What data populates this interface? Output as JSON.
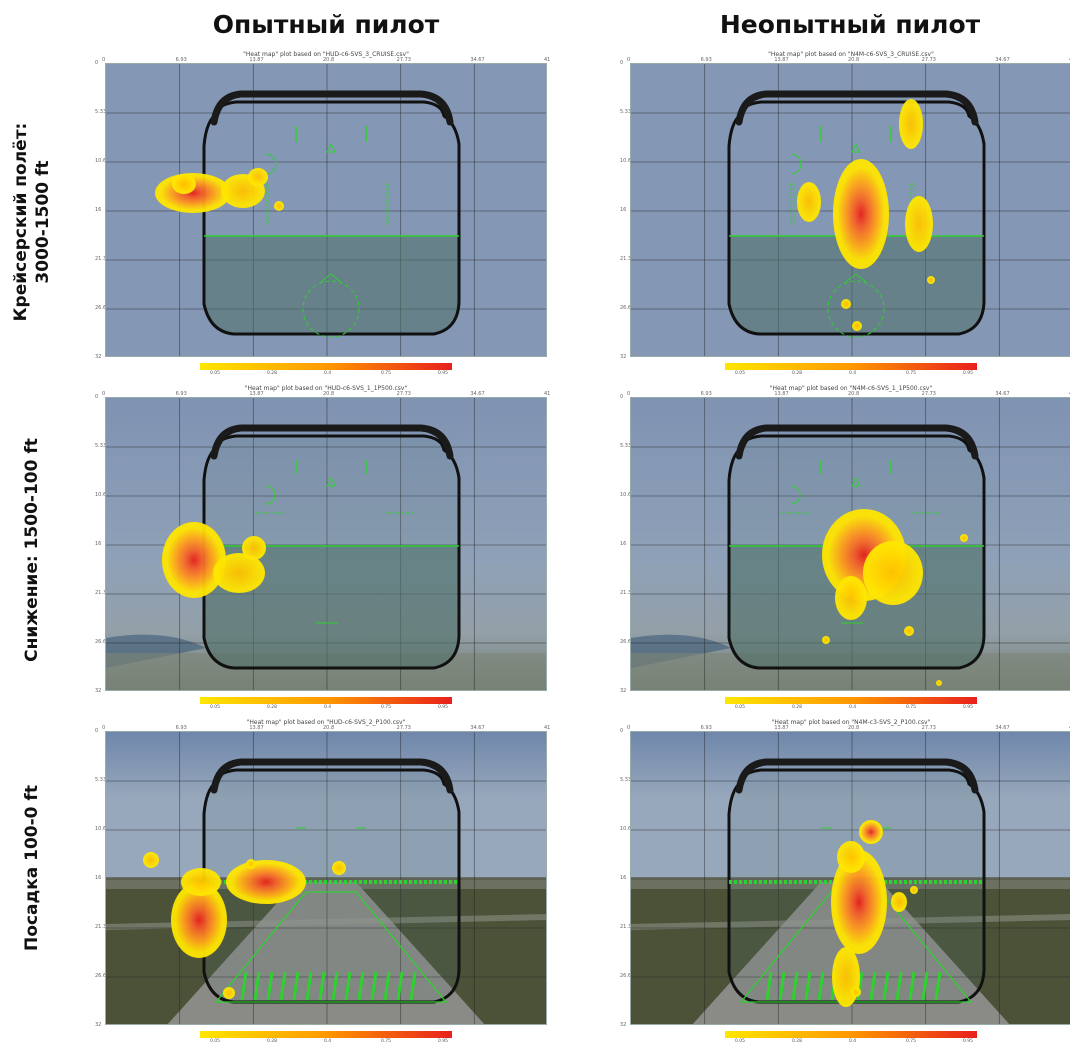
{
  "columns": [
    "Опытный пилот",
    "Неопытный пилот"
  ],
  "rows": [
    {
      "label_lines": [
        "Крейсерский полёт:",
        "3000-1500 ft"
      ]
    },
    {
      "label_lines": [
        "Снижение: 1500-100 ft"
      ]
    },
    {
      "label_lines": [
        "Посадка 100-0 ft"
      ]
    }
  ],
  "panels": [
    {
      "title": "\"Heat map\" plot based on \"HUD-c6-SVS_3_CRUISE.csv\"",
      "scene": "sky",
      "heat": "exp1"
    },
    {
      "title": "\"Heat map\" plot based on \"N4M-c6-SVS_3_CRUISE.csv\"",
      "scene": "sky",
      "heat": "nov1"
    },
    {
      "title": "\"Heat map\" plot based on \"HUD-c6-SVS_1_1P500.csv\"",
      "scene": "descent",
      "heat": "exp2"
    },
    {
      "title": "\"Heat map\" plot based on \"N4M-c6-SVS_1_1P500.csv\"",
      "scene": "descent",
      "heat": "nov2"
    },
    {
      "title": "\"Heat map\" plot based on \"HUD-c6-SVS_2_P100.csv\"",
      "scene": "runway",
      "heat": "exp3"
    },
    {
      "title": "\"Heat map\" plot based on \"N4M-c3-SVS_2_P100.csv\"",
      "scene": "runway",
      "heat": "nov3"
    }
  ],
  "x_ticks": [
    "0",
    "6.93",
    "13.87",
    "20.8",
    "27.73",
    "34.67",
    "41"
  ],
  "y_ticks": [
    "0",
    "5.33",
    "10.67",
    "16",
    "21.33",
    "26.67",
    "32"
  ],
  "colorbar": {
    "ticks": [
      "0.05",
      "0.28",
      "0.4",
      "0.75",
      "0.95"
    ],
    "colors": [
      "#ffe600",
      "#ff9800",
      "#e8201c"
    ]
  },
  "hud_color": "#2fd02f"
}
